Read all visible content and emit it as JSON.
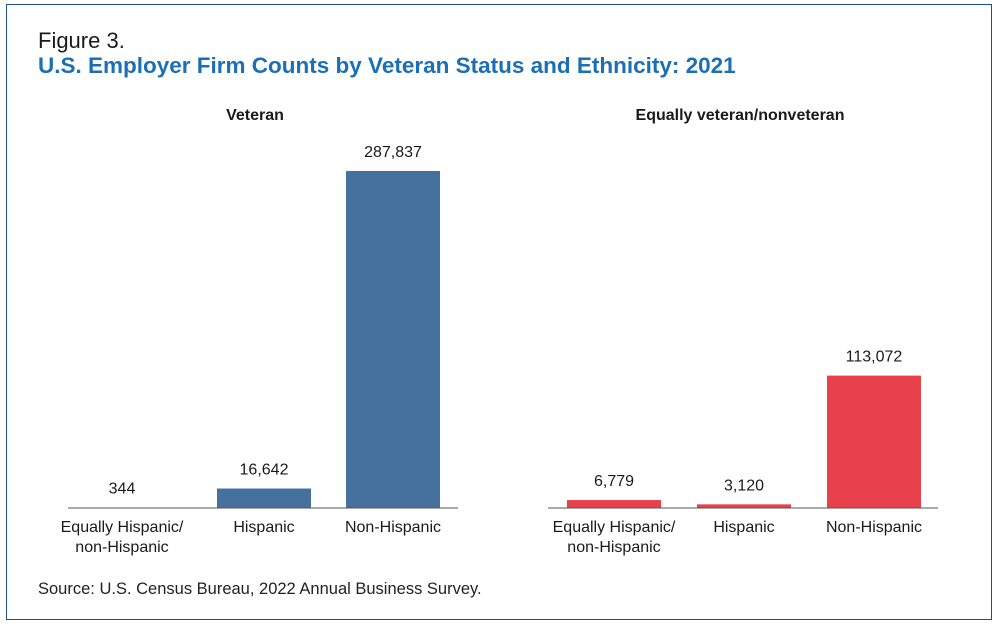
{
  "figure_label": "Figure 3.",
  "title": "U.S. Employer Firm Counts by Veteran Status and Ethnicity: 2021",
  "source": "Source: U.S. Census Bureau, 2022 Annual Business Survey.",
  "chart_data": [
    {
      "type": "bar",
      "title": "Veteran",
      "categories": [
        [
          "Equally Hispanic/",
          "non-Hispanic"
        ],
        [
          "Hispanic"
        ],
        [
          "Non-Hispanic"
        ]
      ],
      "values": [
        344,
        16642,
        287837
      ],
      "value_labels": [
        "344",
        "16,642",
        "287,837"
      ],
      "ylim": [
        0,
        300000
      ],
      "color": "#46709e",
      "grid": false
    },
    {
      "type": "bar",
      "title": "Equally veteran/nonveteran",
      "categories": [
        [
          "Equally Hispanic/",
          "non-Hispanic"
        ],
        [
          "Hispanic"
        ],
        [
          "Non-Hispanic"
        ]
      ],
      "values": [
        6779,
        3120,
        113072
      ],
      "value_labels": [
        "6,779",
        "3,120",
        "113,072"
      ],
      "ylim": [
        0,
        300000
      ],
      "color": "#e8414b",
      "grid": false
    }
  ]
}
